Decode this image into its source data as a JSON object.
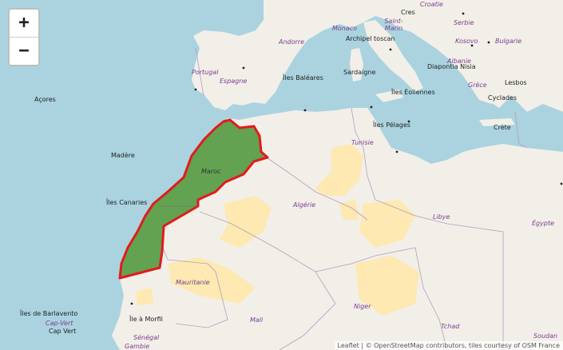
{
  "map": {
    "zoom_in_label": "+",
    "zoom_out_label": "−",
    "highlight_color": "#e31a1c",
    "highlight_fill": "#3d8f2a",
    "labels": {
      "croatie": "Croatie",
      "cres": "Cres",
      "serbie": "Serbie",
      "kosovo": "Kosovo",
      "bulgarie": "Bulgarie",
      "monaco": "Monaco",
      "saint_marin": "Saint-Marin",
      "andorre": "Andorre",
      "archipel_toscan": "Archipel toscan",
      "portugal": "Portugal",
      "espagne": "Espagne",
      "iles_baleares": "Îles Baléares",
      "sardaigne": "Sardaigne",
      "albanie": "Albanie",
      "diapontia": "Diapontia Nisia",
      "grece": "Grèce",
      "lesbos": "Lesbos",
      "acores": "Açores",
      "iles_eoliennes": "Îles Éoliennes",
      "cyclades": "Cyclades",
      "crete": "Crète",
      "iles_pelages": "Îles Pélages",
      "tunisie": "Tunisie",
      "madere": "Madère",
      "maroc": "Maroc",
      "iles_canaries": "Îles Canaries",
      "algerie": "Algérie",
      "libye": "Libye",
      "egypte": "Égypte",
      "mauritanie": "Mauritanie",
      "niger": "Niger",
      "iles_barlavento": "Îles de Barlavento",
      "cap_vert": "Cap-Vert",
      "cap_vert_city": "Cap Vert",
      "ile_a_morfil": "Île à Morfil",
      "mali": "Mali",
      "tchad": "Tchad",
      "soudan": "Soudan",
      "senegal": "Sénégal",
      "gambie": "Gambie"
    },
    "attribution": "Leaflet | © OpenStreetMap contributors, tiles courtesy of OSM France"
  }
}
